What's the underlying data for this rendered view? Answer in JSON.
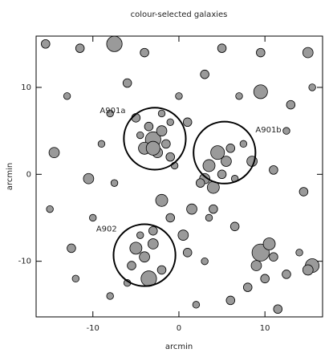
{
  "chart_data": {
    "type": "scatter",
    "title": "colour-selected galaxies",
    "x_label": "arcmin",
    "y_label": "arcmin",
    "xlim": [
      -16.6,
      16.7
    ],
    "ylim": [
      -16.4,
      15.9
    ],
    "xticks": [
      -10,
      0,
      10
    ],
    "yticks": [
      -10,
      0,
      10
    ],
    "color": "#9a9a9a",
    "x": [
      -3,
      -2,
      -4,
      -1.5,
      -3.5,
      -2.5,
      -4.5,
      -1,
      -5,
      -2,
      -3,
      -1,
      4.5,
      5.5,
      3.5,
      6,
      3,
      4,
      2.5,
      5,
      4,
      3.5,
      8.5,
      7.5,
      6.5,
      -3.5,
      -5,
      -4,
      -3,
      -5.5,
      -2,
      -6,
      -3,
      -4.5,
      9.5,
      10.5,
      9,
      11,
      8,
      10,
      15.5,
      15,
      12.5,
      14,
      -7.5,
      -11.5,
      -15.5,
      5,
      15,
      9.5,
      3,
      -4,
      -6,
      9.5,
      13,
      15.5,
      -14.5,
      -10.5,
      -9,
      -2,
      -7.5,
      0.5,
      -1,
      1.5,
      -12.5,
      -15,
      -10,
      -8,
      2,
      6,
      11.5,
      14.5,
      11,
      12.5,
      1,
      0,
      -8,
      -13,
      7,
      -12,
      6.5,
      -0.5,
      1,
      3
    ],
    "y": [
      4,
      5,
      3,
      3.5,
      5.5,
      2.5,
      4.5,
      6,
      6.5,
      7,
      3,
      2,
      2.5,
      1.5,
      1,
      3,
      -0.5,
      -1.5,
      -1,
      0,
      -4,
      -5,
      1.5,
      3.5,
      -0.5,
      -12,
      -8.5,
      -9.5,
      -8,
      -10.5,
      -11,
      -12.5,
      -6.5,
      -7,
      -9,
      -8,
      -10.5,
      -9.5,
      -13,
      -12,
      -10.5,
      -11,
      -11.5,
      -9,
      15,
      14.5,
      15,
      14.5,
      14,
      14,
      11.5,
      14,
      10.5,
      9.5,
      8,
      10,
      2.5,
      -0.5,
      3.5,
      -3,
      -1,
      -7,
      -5,
      -4,
      -8.5,
      -4,
      -5,
      -14,
      -15,
      -14.5,
      -15.5,
      -2,
      0.5,
      5,
      6,
      9,
      7,
      9,
      9,
      -12,
      -6,
      1,
      -9,
      -10
    ],
    "sizes": [
      0.9,
      0.6,
      0.7,
      0.5,
      0.5,
      0.6,
      0.4,
      0.4,
      0.5,
      0.4,
      0.8,
      0.5,
      0.8,
      0.6,
      0.7,
      0.5,
      0.6,
      0.7,
      0.5,
      0.5,
      0.5,
      0.4,
      0.6,
      0.4,
      0.4,
      0.9,
      0.7,
      0.6,
      0.6,
      0.5,
      0.5,
      0.4,
      0.5,
      0.4,
      1.0,
      0.7,
      0.6,
      0.5,
      0.5,
      0.5,
      0.8,
      0.6,
      0.5,
      0.4,
      0.9,
      0.5,
      0.5,
      0.5,
      0.6,
      0.5,
      0.5,
      0.5,
      0.5,
      0.8,
      0.5,
      0.4,
      0.6,
      0.6,
      0.4,
      0.7,
      0.4,
      0.6,
      0.5,
      0.6,
      0.5,
      0.4,
      0.4,
      0.4,
      0.4,
      0.5,
      0.5,
      0.5,
      0.5,
      0.4,
      0.5,
      0.4,
      0.4,
      0.4,
      0.4,
      0.4,
      0.5,
      0.4,
      0.5,
      0.4
    ],
    "circles": [
      {
        "label": "A901a",
        "x": -2.8,
        "y": 4.1,
        "r": 3.6
      },
      {
        "label": "A901b",
        "x": 5.3,
        "y": 2.5,
        "r": 3.6
      },
      {
        "label": "A902",
        "x": -4.0,
        "y": -9.3,
        "r": 3.6
      }
    ]
  }
}
